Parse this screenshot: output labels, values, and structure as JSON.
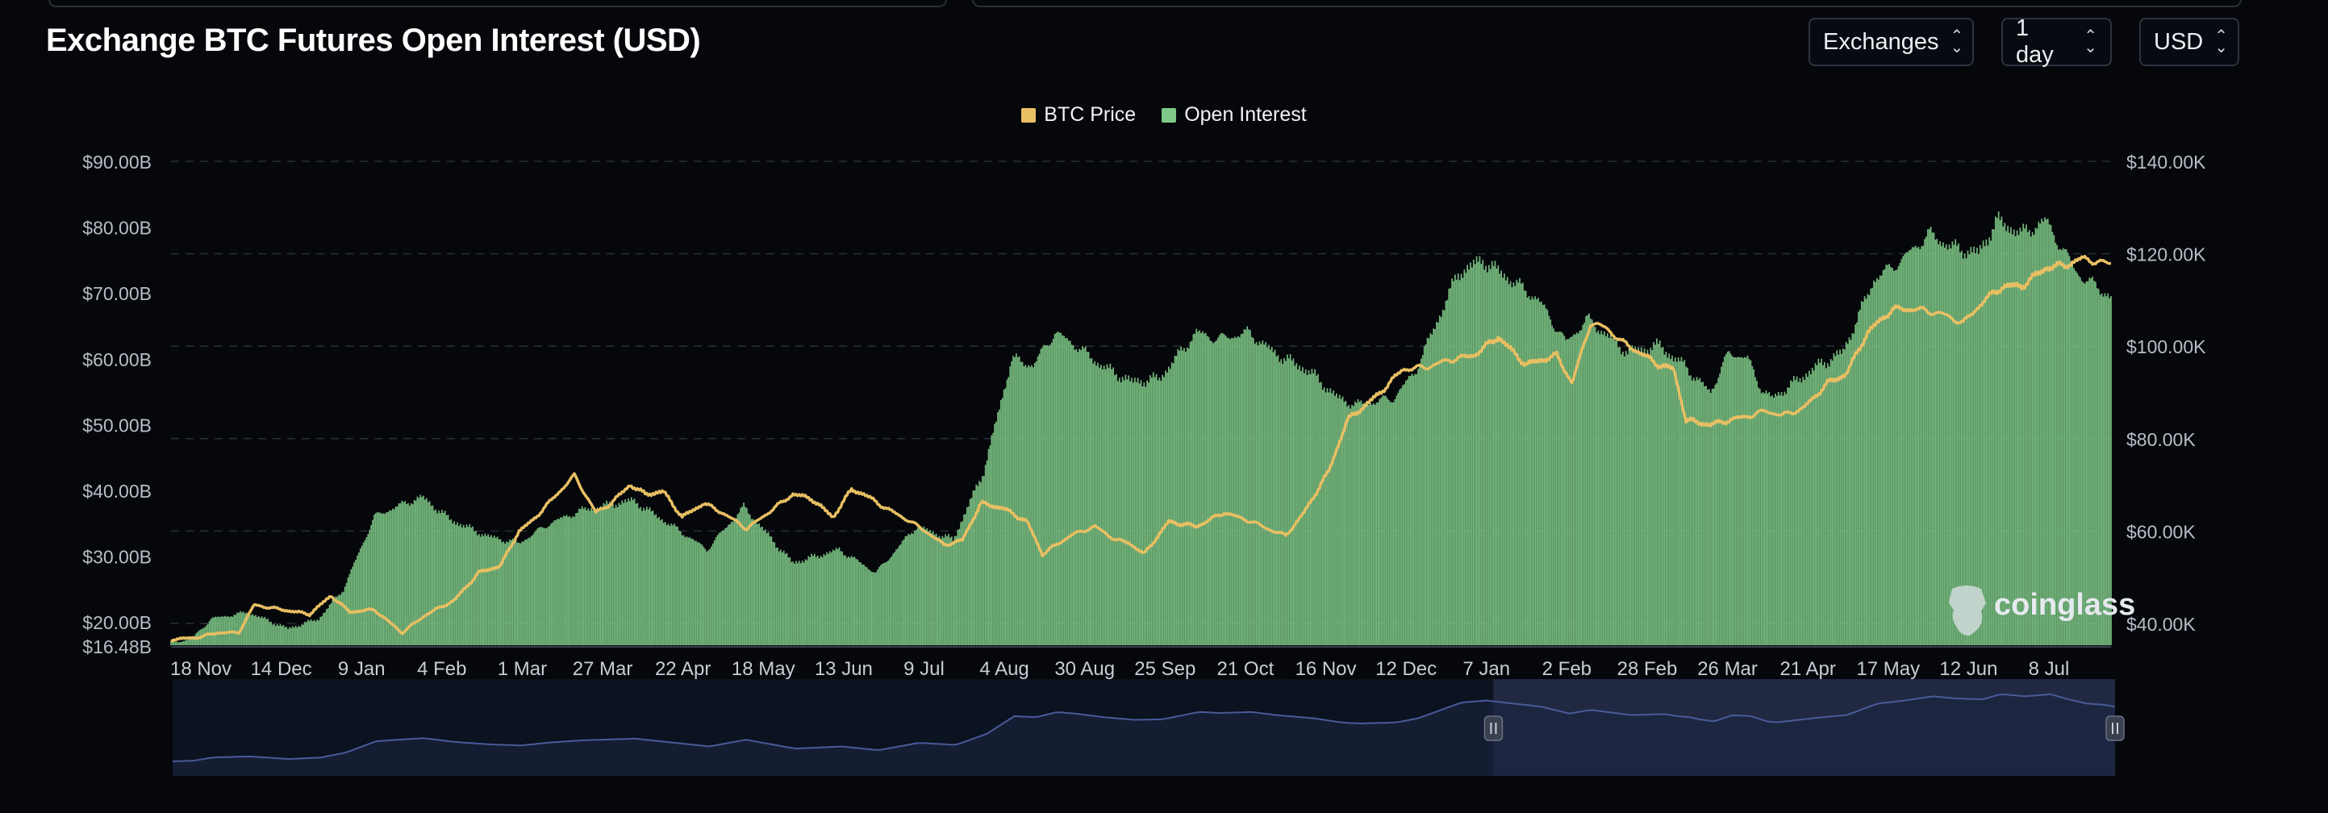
{
  "header": {
    "title": "Exchange BTC Futures Open Interest (USD)",
    "controls": [
      {
        "label": "Exchanges"
      },
      {
        "label": "1 day"
      },
      {
        "label": "USD"
      }
    ]
  },
  "colors": {
    "price": "#e8bf63",
    "open_interest": "#7fc988",
    "background": "#05070b",
    "navigator_line": "#4a5a9a"
  },
  "chart_data": {
    "type": "bar",
    "title": "Exchange BTC Futures Open Interest (USD)",
    "legend": [
      "BTC Price",
      "Open Interest"
    ],
    "legend_position": "top-center",
    "grid": true,
    "x_ticks": [
      "18 Nov",
      "14 Dec",
      "9 Jan",
      "4 Feb",
      "1 Mar",
      "27 Mar",
      "22 Apr",
      "18 May",
      "13 Jun",
      "9 Jul",
      "4 Aug",
      "30 Aug",
      "25 Sep",
      "21 Oct",
      "16 Nov",
      "12 Dec",
      "7 Jan",
      "2 Feb",
      "28 Feb",
      "26 Mar",
      "21 Apr",
      "17 May",
      "12 Jun",
      "8 Jul"
    ],
    "y_left_ticks": [
      "$90.00B",
      "$80.00B",
      "$70.00B",
      "$60.00B",
      "$50.00B",
      "$40.00B",
      "$30.00B",
      "$20.00B",
      "$16.48B"
    ],
    "y_left_values": [
      90,
      80,
      70,
      60,
      50,
      40,
      30,
      20,
      16.48
    ],
    "y_left_range": [
      16.48,
      90
    ],
    "y_right_ticks": [
      "$140.00K",
      "$120.00K",
      "$100.00K",
      "$80.00K",
      "$60.00K",
      "$40.00K"
    ],
    "y_right_values": [
      140,
      120,
      100,
      80,
      60,
      40
    ],
    "y_right_range": [
      34.5,
      140
    ],
    "series": [
      {
        "name": "Open Interest",
        "type": "bar",
        "unit": "USD billions",
        "keypoints": [
          [
            0,
            16.8
          ],
          [
            14,
            17.5
          ],
          [
            26,
            20.5
          ],
          [
            50,
            21.5
          ],
          [
            76,
            19
          ],
          [
            96,
            20.5
          ],
          [
            112,
            25
          ],
          [
            132,
            36
          ],
          [
            146,
            37.5
          ],
          [
            163,
            39
          ],
          [
            182,
            35.5
          ],
          [
            206,
            33
          ],
          [
            226,
            32
          ],
          [
            246,
            35
          ],
          [
            267,
            37
          ],
          [
            300,
            38.5
          ],
          [
            336,
            33
          ],
          [
            348,
            31
          ],
          [
            372,
            37.5
          ],
          [
            398,
            30.5
          ],
          [
            404,
            29
          ],
          [
            434,
            31
          ],
          [
            458,
            27.5
          ],
          [
            484,
            34.5
          ],
          [
            508,
            32.5
          ],
          [
            528,
            43
          ],
          [
            546,
            60
          ],
          [
            560,
            59
          ],
          [
            574,
            64
          ],
          [
            588,
            62
          ],
          [
            604,
            59
          ],
          [
            624,
            56.5
          ],
          [
            642,
            57
          ],
          [
            666,
            64
          ],
          [
            680,
            63
          ],
          [
            700,
            64
          ],
          [
            716,
            61
          ],
          [
            740,
            58
          ],
          [
            758,
            54
          ],
          [
            770,
            53
          ],
          [
            794,
            54
          ],
          [
            808,
            58
          ],
          [
            836,
            73
          ],
          [
            852,
            75
          ],
          [
            870,
            72
          ],
          [
            888,
            69
          ],
          [
            906,
            62.5
          ],
          [
            920,
            66
          ],
          [
            946,
            61
          ],
          [
            968,
            62
          ],
          [
            976,
            60
          ],
          [
            984,
            59
          ],
          [
            990,
            57
          ],
          [
            1000,
            55
          ],
          [
            1012,
            61
          ],
          [
            1024,
            60
          ],
          [
            1034,
            55
          ],
          [
            1040,
            54
          ],
          [
            1058,
            57
          ],
          [
            1070,
            59
          ],
          [
            1086,
            61
          ],
          [
            1106,
            72
          ],
          [
            1124,
            75
          ],
          [
            1142,
            79
          ],
          [
            1156,
            77
          ],
          [
            1174,
            76
          ],
          [
            1186,
            81
          ],
          [
            1202,
            79
          ],
          [
            1218,
            81
          ],
          [
            1230,
            76
          ],
          [
            1242,
            72
          ],
          [
            1252,
            71
          ],
          [
            1260,
            69
          ]
        ]
      },
      {
        "name": "BTC Price",
        "type": "line",
        "unit": "USD thousands",
        "keypoints": [
          [
            0,
            36.5
          ],
          [
            18,
            37
          ],
          [
            30,
            38
          ],
          [
            44,
            38
          ],
          [
            54,
            44
          ],
          [
            72,
            43
          ],
          [
            90,
            42
          ],
          [
            104,
            46
          ],
          [
            116,
            42.5
          ],
          [
            132,
            43
          ],
          [
            150,
            38
          ],
          [
            166,
            42
          ],
          [
            184,
            45
          ],
          [
            200,
            51
          ],
          [
            214,
            52.5
          ],
          [
            226,
            60
          ],
          [
            234,
            62
          ],
          [
            248,
            67
          ],
          [
            262,
            72
          ],
          [
            276,
            64
          ],
          [
            286,
            66
          ],
          [
            298,
            70
          ],
          [
            308,
            68
          ],
          [
            320,
            68.5
          ],
          [
            332,
            63
          ],
          [
            346,
            66
          ],
          [
            358,
            64
          ],
          [
            374,
            60.5
          ],
          [
            388,
            64
          ],
          [
            404,
            68
          ],
          [
            416,
            67
          ],
          [
            430,
            63
          ],
          [
            442,
            69
          ],
          [
            450,
            68
          ],
          [
            464,
            65
          ],
          [
            478,
            62.5
          ],
          [
            490,
            60
          ],
          [
            502,
            57
          ],
          [
            514,
            58
          ],
          [
            526,
            66
          ],
          [
            540,
            65
          ],
          [
            556,
            62
          ],
          [
            566,
            55
          ],
          [
            584,
            59
          ],
          [
            600,
            61
          ],
          [
            614,
            58
          ],
          [
            622,
            57.5
          ],
          [
            632,
            55
          ],
          [
            648,
            62
          ],
          [
            666,
            61
          ],
          [
            684,
            64
          ],
          [
            702,
            62
          ],
          [
            716,
            60
          ],
          [
            724,
            59
          ],
          [
            736,
            64
          ],
          [
            752,
            73
          ],
          [
            764,
            84
          ],
          [
            784,
            89.5
          ],
          [
            800,
            95
          ],
          [
            816,
            95.5
          ],
          [
            830,
            97
          ],
          [
            846,
            98
          ],
          [
            862,
            102
          ],
          [
            880,
            96
          ],
          [
            900,
            98
          ],
          [
            910,
            92
          ],
          [
            922,
            105
          ],
          [
            932,
            104
          ],
          [
            942,
            101
          ],
          [
            952,
            99
          ],
          [
            966,
            96
          ],
          [
            976,
            95
          ],
          [
            984,
            84
          ],
          [
            1000,
            83
          ],
          [
            1012,
            84
          ],
          [
            1026,
            85
          ],
          [
            1036,
            86
          ],
          [
            1046,
            85
          ],
          [
            1060,
            86.5
          ],
          [
            1076,
            92
          ],
          [
            1088,
            94
          ],
          [
            1102,
            103
          ],
          [
            1118,
            108
          ],
          [
            1134,
            108
          ],
          [
            1150,
            107
          ],
          [
            1164,
            105
          ],
          [
            1178,
            110
          ],
          [
            1190,
            113
          ],
          [
            1202,
            113
          ],
          [
            1218,
            117
          ],
          [
            1230,
            117.5
          ],
          [
            1242,
            119
          ],
          [
            1254,
            118
          ],
          [
            1260,
            118
          ]
        ]
      }
    ],
    "points": 1261,
    "watermark": "coinglass"
  },
  "navigator": {
    "handles": [
      "left-handle",
      "right-handle"
    ],
    "selected_fraction": [
      0.68,
      1.0
    ]
  }
}
